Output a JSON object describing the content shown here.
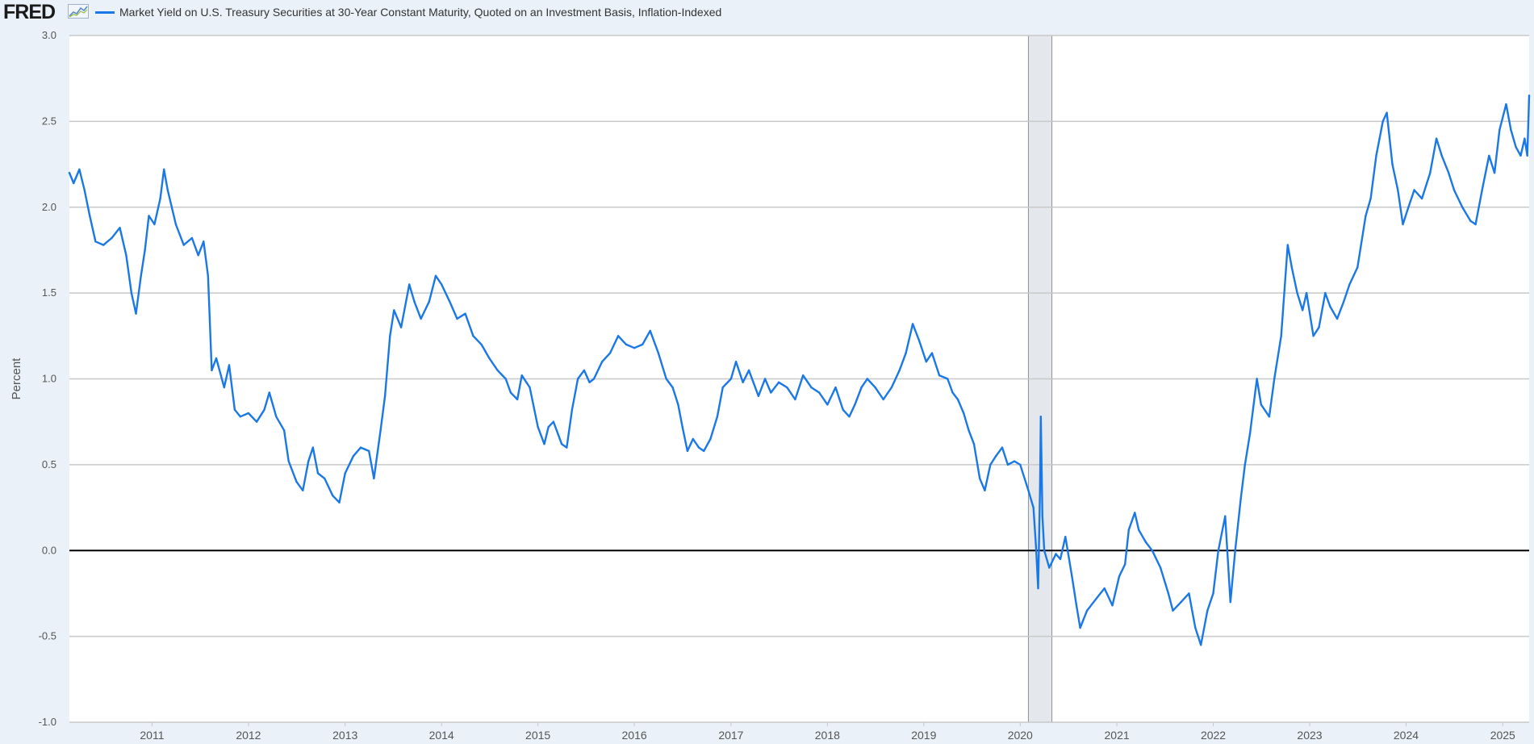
{
  "header": {
    "logo_text": "FRED",
    "logo_graph_icon": "line-chart-icon"
  },
  "colors": {
    "series": "#1a78e6",
    "plot_background": "#ffffff",
    "page_background": "#eaf1f8",
    "grid": "#c8c8c8",
    "zero_line": "#000000",
    "recession_shade": "#e4e8ec",
    "axis_text": "#555555"
  },
  "chart_data": {
    "type": "line",
    "title": "",
    "ylabel": "Percent",
    "xlabel": "",
    "ylim": [
      -1.0,
      3.0
    ],
    "xlim": [
      "2010-02-22",
      "2025-04-11"
    ],
    "grid": true,
    "legend_position": "top-left",
    "y_ticks": [
      3.0,
      2.5,
      2.0,
      1.5,
      1.0,
      0.5,
      0.0,
      -0.5,
      -1.0
    ],
    "y_tick_labels": [
      "3.0",
      "2.5",
      "2.0",
      "1.5",
      "1.0",
      "0.5",
      "0.0",
      "-0.5",
      "-1.0"
    ],
    "x_ticks": [
      "2011-01-01",
      "2012-01-01",
      "2013-01-01",
      "2014-01-01",
      "2015-01-01",
      "2016-01-01",
      "2017-01-01",
      "2018-01-01",
      "2019-01-01",
      "2020-01-01",
      "2021-01-01",
      "2022-01-01",
      "2023-01-01",
      "2024-01-01",
      "2025-01-01"
    ],
    "x_tick_labels": [
      "2011",
      "2012",
      "2013",
      "2014",
      "2015",
      "2016",
      "2017",
      "2018",
      "2019",
      "2020",
      "2021",
      "2022",
      "2023",
      "2024",
      "2025"
    ],
    "recessions": [
      {
        "start": "2020-02-01",
        "end": "2020-04-30"
      }
    ],
    "series": [
      {
        "name": "Market Yield on U.S. Treasury Securities at 30-Year Constant Maturity, Quoted on an Investment Basis, Inflation-Indexed",
        "points": [
          [
            "2010-02-22",
            2.2
          ],
          [
            "2010-03-10",
            2.14
          ],
          [
            "2010-04-01",
            2.22
          ],
          [
            "2010-04-20",
            2.1
          ],
          [
            "2010-05-10",
            1.95
          ],
          [
            "2010-06-01",
            1.8
          ],
          [
            "2010-07-01",
            1.78
          ],
          [
            "2010-08-01",
            1.82
          ],
          [
            "2010-09-01",
            1.88
          ],
          [
            "2010-09-25",
            1.72
          ],
          [
            "2010-10-15",
            1.5
          ],
          [
            "2010-11-01",
            1.38
          ],
          [
            "2010-11-20",
            1.6
          ],
          [
            "2010-12-05",
            1.75
          ],
          [
            "2010-12-20",
            1.95
          ],
          [
            "2011-01-10",
            1.9
          ],
          [
            "2011-02-01",
            2.05
          ],
          [
            "2011-02-15",
            2.22
          ],
          [
            "2011-03-01",
            2.1
          ],
          [
            "2011-04-01",
            1.9
          ],
          [
            "2011-05-01",
            1.78
          ],
          [
            "2011-06-01",
            1.82
          ],
          [
            "2011-06-25",
            1.72
          ],
          [
            "2011-07-15",
            1.8
          ],
          [
            "2011-08-01",
            1.6
          ],
          [
            "2011-08-15",
            1.05
          ],
          [
            "2011-09-01",
            1.12
          ],
          [
            "2011-10-01",
            0.95
          ],
          [
            "2011-10-20",
            1.08
          ],
          [
            "2011-11-10",
            0.82
          ],
          [
            "2011-12-01",
            0.78
          ],
          [
            "2012-01-01",
            0.8
          ],
          [
            "2012-02-01",
            0.75
          ],
          [
            "2012-03-01",
            0.82
          ],
          [
            "2012-03-20",
            0.92
          ],
          [
            "2012-04-15",
            0.78
          ],
          [
            "2012-05-15",
            0.7
          ],
          [
            "2012-06-01",
            0.52
          ],
          [
            "2012-07-01",
            0.4
          ],
          [
            "2012-07-25",
            0.35
          ],
          [
            "2012-08-15",
            0.52
          ],
          [
            "2012-09-01",
            0.6
          ],
          [
            "2012-09-20",
            0.45
          ],
          [
            "2012-10-15",
            0.42
          ],
          [
            "2012-11-15",
            0.32
          ],
          [
            "2012-12-10",
            0.28
          ],
          [
            "2013-01-01",
            0.45
          ],
          [
            "2013-02-01",
            0.55
          ],
          [
            "2013-03-01",
            0.6
          ],
          [
            "2013-04-01",
            0.58
          ],
          [
            "2013-04-20",
            0.42
          ],
          [
            "2013-05-15",
            0.7
          ],
          [
            "2013-06-01",
            0.9
          ],
          [
            "2013-06-20",
            1.25
          ],
          [
            "2013-07-05",
            1.4
          ],
          [
            "2013-08-01",
            1.3
          ],
          [
            "2013-09-01",
            1.55
          ],
          [
            "2013-09-20",
            1.45
          ],
          [
            "2013-10-15",
            1.35
          ],
          [
            "2013-11-15",
            1.45
          ],
          [
            "2013-12-10",
            1.6
          ],
          [
            "2014-01-01",
            1.55
          ],
          [
            "2014-02-01",
            1.45
          ],
          [
            "2014-03-01",
            1.35
          ],
          [
            "2014-04-01",
            1.38
          ],
          [
            "2014-05-01",
            1.25
          ],
          [
            "2014-06-01",
            1.2
          ],
          [
            "2014-07-01",
            1.12
          ],
          [
            "2014-08-01",
            1.05
          ],
          [
            "2014-09-01",
            1.0
          ],
          [
            "2014-09-20",
            0.92
          ],
          [
            "2014-10-15",
            0.88
          ],
          [
            "2014-11-01",
            1.02
          ],
          [
            "2014-12-01",
            0.95
          ],
          [
            "2015-01-01",
            0.72
          ],
          [
            "2015-01-25",
            0.62
          ],
          [
            "2015-02-10",
            0.72
          ],
          [
            "2015-03-01",
            0.75
          ],
          [
            "2015-04-01",
            0.62
          ],
          [
            "2015-04-20",
            0.6
          ],
          [
            "2015-05-10",
            0.82
          ],
          [
            "2015-06-01",
            1.0
          ],
          [
            "2015-06-25",
            1.05
          ],
          [
            "2015-07-15",
            0.98
          ],
          [
            "2015-08-01",
            1.0
          ],
          [
            "2015-09-01",
            1.1
          ],
          [
            "2015-10-01",
            1.15
          ],
          [
            "2015-11-01",
            1.25
          ],
          [
            "2015-12-01",
            1.2
          ],
          [
            "2016-01-01",
            1.18
          ],
          [
            "2016-02-01",
            1.2
          ],
          [
            "2016-03-01",
            1.28
          ],
          [
            "2016-04-01",
            1.15
          ],
          [
            "2016-05-01",
            1.0
          ],
          [
            "2016-05-25",
            0.95
          ],
          [
            "2016-06-15",
            0.85
          ],
          [
            "2016-07-01",
            0.72
          ],
          [
            "2016-07-20",
            0.58
          ],
          [
            "2016-08-10",
            0.65
          ],
          [
            "2016-09-01",
            0.6
          ],
          [
            "2016-09-20",
            0.58
          ],
          [
            "2016-10-15",
            0.65
          ],
          [
            "2016-11-10",
            0.78
          ],
          [
            "2016-12-01",
            0.95
          ],
          [
            "2017-01-01",
            1.0
          ],
          [
            "2017-01-20",
            1.1
          ],
          [
            "2017-02-15",
            0.98
          ],
          [
            "2017-03-10",
            1.05
          ],
          [
            "2017-04-15",
            0.9
          ],
          [
            "2017-05-10",
            1.0
          ],
          [
            "2017-06-01",
            0.92
          ],
          [
            "2017-07-01",
            0.98
          ],
          [
            "2017-08-01",
            0.95
          ],
          [
            "2017-09-01",
            0.88
          ],
          [
            "2017-10-01",
            1.02
          ],
          [
            "2017-11-01",
            0.95
          ],
          [
            "2017-12-01",
            0.92
          ],
          [
            "2018-01-01",
            0.85
          ],
          [
            "2018-02-01",
            0.95
          ],
          [
            "2018-03-01",
            0.82
          ],
          [
            "2018-03-25",
            0.78
          ],
          [
            "2018-04-15",
            0.85
          ],
          [
            "2018-05-10",
            0.95
          ],
          [
            "2018-06-01",
            1.0
          ],
          [
            "2018-07-01",
            0.95
          ],
          [
            "2018-08-01",
            0.88
          ],
          [
            "2018-09-01",
            0.95
          ],
          [
            "2018-10-01",
            1.05
          ],
          [
            "2018-10-25",
            1.15
          ],
          [
            "2018-11-20",
            1.32
          ],
          [
            "2018-12-15",
            1.22
          ],
          [
            "2019-01-10",
            1.1
          ],
          [
            "2019-02-01",
            1.15
          ],
          [
            "2019-03-01",
            1.02
          ],
          [
            "2019-04-01",
            1.0
          ],
          [
            "2019-04-20",
            0.92
          ],
          [
            "2019-05-10",
            0.88
          ],
          [
            "2019-06-01",
            0.8
          ],
          [
            "2019-06-20",
            0.7
          ],
          [
            "2019-07-10",
            0.62
          ],
          [
            "2019-08-01",
            0.42
          ],
          [
            "2019-08-20",
            0.35
          ],
          [
            "2019-09-10",
            0.5
          ],
          [
            "2019-10-01",
            0.55
          ],
          [
            "2019-10-25",
            0.6
          ],
          [
            "2019-11-15",
            0.5
          ],
          [
            "2019-12-10",
            0.52
          ],
          [
            "2020-01-01",
            0.5
          ],
          [
            "2020-02-01",
            0.35
          ],
          [
            "2020-02-20",
            0.25
          ],
          [
            "2020-03-01",
            0.02
          ],
          [
            "2020-03-09",
            -0.22
          ],
          [
            "2020-03-16",
            0.35
          ],
          [
            "2020-03-19",
            0.78
          ],
          [
            "2020-03-25",
            0.2
          ],
          [
            "2020-04-01",
            0.0
          ],
          [
            "2020-04-20",
            -0.1
          ],
          [
            "2020-05-15",
            -0.02
          ],
          [
            "2020-06-01",
            -0.05
          ],
          [
            "2020-06-20",
            0.08
          ],
          [
            "2020-07-15",
            -0.15
          ],
          [
            "2020-08-01",
            -0.32
          ],
          [
            "2020-08-15",
            -0.45
          ],
          [
            "2020-09-10",
            -0.35
          ],
          [
            "2020-10-15",
            -0.28
          ],
          [
            "2020-11-15",
            -0.22
          ],
          [
            "2020-12-15",
            -0.32
          ],
          [
            "2021-01-10",
            -0.15
          ],
          [
            "2021-02-01",
            -0.08
          ],
          [
            "2021-02-15",
            0.12
          ],
          [
            "2021-03-10",
            0.22
          ],
          [
            "2021-03-25",
            0.12
          ],
          [
            "2021-04-20",
            0.05
          ],
          [
            "2021-05-15",
            0.0
          ],
          [
            "2021-06-15",
            -0.1
          ],
          [
            "2021-07-15",
            -0.25
          ],
          [
            "2021-08-01",
            -0.35
          ],
          [
            "2021-09-01",
            -0.3
          ],
          [
            "2021-10-01",
            -0.25
          ],
          [
            "2021-10-25",
            -0.45
          ],
          [
            "2021-11-15",
            -0.55
          ],
          [
            "2021-12-10",
            -0.35
          ],
          [
            "2022-01-01",
            -0.25
          ],
          [
            "2022-01-20",
            0.0
          ],
          [
            "2022-02-15",
            0.2
          ],
          [
            "2022-03-07",
            -0.3
          ],
          [
            "2022-03-25",
            0.0
          ],
          [
            "2022-04-15",
            0.3
          ],
          [
            "2022-05-01",
            0.5
          ],
          [
            "2022-05-20",
            0.68
          ],
          [
            "2022-06-15",
            1.0
          ],
          [
            "2022-07-01",
            0.85
          ],
          [
            "2022-08-01",
            0.78
          ],
          [
            "2022-08-20",
            1.0
          ],
          [
            "2022-09-15",
            1.25
          ],
          [
            "2022-10-10",
            1.78
          ],
          [
            "2022-10-25",
            1.65
          ],
          [
            "2022-11-15",
            1.5
          ],
          [
            "2022-12-05",
            1.4
          ],
          [
            "2022-12-20",
            1.5
          ],
          [
            "2023-01-15",
            1.25
          ],
          [
            "2023-02-05",
            1.3
          ],
          [
            "2023-03-01",
            1.5
          ],
          [
            "2023-03-20",
            1.42
          ],
          [
            "2023-04-15",
            1.35
          ],
          [
            "2023-05-10",
            1.45
          ],
          [
            "2023-06-01",
            1.55
          ],
          [
            "2023-07-01",
            1.65
          ],
          [
            "2023-08-01",
            1.95
          ],
          [
            "2023-08-20",
            2.05
          ],
          [
            "2023-09-10",
            2.3
          ],
          [
            "2023-10-05",
            2.5
          ],
          [
            "2023-10-20",
            2.55
          ],
          [
            "2023-11-10",
            2.25
          ],
          [
            "2023-12-01",
            2.1
          ],
          [
            "2023-12-20",
            1.9
          ],
          [
            "2024-01-10",
            2.0
          ],
          [
            "2024-02-01",
            2.1
          ],
          [
            "2024-03-01",
            2.05
          ],
          [
            "2024-04-01",
            2.2
          ],
          [
            "2024-04-25",
            2.4
          ],
          [
            "2024-05-15",
            2.3
          ],
          [
            "2024-06-10",
            2.2
          ],
          [
            "2024-07-01",
            2.1
          ],
          [
            "2024-08-01",
            2.0
          ],
          [
            "2024-09-01",
            1.92
          ],
          [
            "2024-09-20",
            1.9
          ],
          [
            "2024-10-15",
            2.1
          ],
          [
            "2024-11-10",
            2.3
          ],
          [
            "2024-12-01",
            2.2
          ],
          [
            "2024-12-20",
            2.45
          ],
          [
            "2025-01-14",
            2.6
          ],
          [
            "2025-02-01",
            2.45
          ],
          [
            "2025-02-20",
            2.35
          ],
          [
            "2025-03-10",
            2.3
          ],
          [
            "2025-03-25",
            2.4
          ],
          [
            "2025-04-04",
            2.3
          ],
          [
            "2025-04-11",
            2.65
          ]
        ]
      }
    ]
  }
}
